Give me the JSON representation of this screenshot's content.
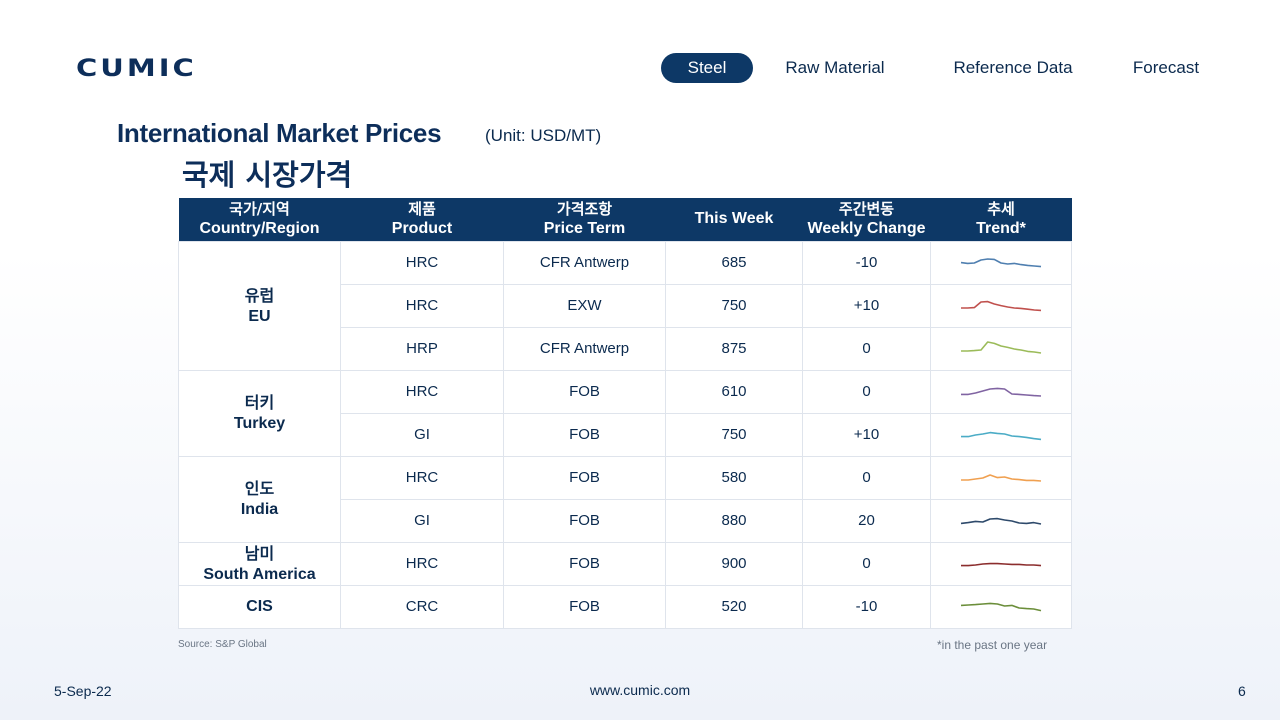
{
  "brand": {
    "logo_text": "CUMIC"
  },
  "nav": {
    "items": [
      {
        "label": "Steel",
        "active": true
      },
      {
        "label": "Raw Material",
        "active": false
      },
      {
        "label": "Reference Data",
        "active": false
      },
      {
        "label": "Forecast",
        "active": false
      }
    ]
  },
  "title": {
    "en": "International Market Prices",
    "unit": "(Unit: USD/MT)",
    "ko": "국제 시장가격"
  },
  "table": {
    "headers": [
      {
        "ko": "국가/지역",
        "en": "Country/Region"
      },
      {
        "ko": "제품",
        "en": "Product"
      },
      {
        "ko": "가격조항",
        "en": "Price Term"
      },
      {
        "ko": "",
        "en": "This Week"
      },
      {
        "ko": "주간변동",
        "en": "Weekly Change"
      },
      {
        "ko": "추세",
        "en": "Trend*"
      }
    ],
    "regions": [
      {
        "ko": "유럽",
        "en": "EU",
        "rows": [
          {
            "product": "HRC",
            "term": "CFR Antwerp",
            "price": "685",
            "change": "-10",
            "trend_color": "#4f7fb0",
            "trend": [
              0.48,
              0.52,
              0.5,
              0.35,
              0.3,
              0.32,
              0.5,
              0.55,
              0.52,
              0.58,
              0.62,
              0.65,
              0.68
            ]
          },
          {
            "product": "HRC",
            "term": "EXW",
            "price": "750",
            "change": "+10",
            "trend_color": "#c0504d",
            "trend": [
              0.6,
              0.6,
              0.58,
              0.3,
              0.28,
              0.4,
              0.48,
              0.55,
              0.6,
              0.62,
              0.66,
              0.7,
              0.72
            ]
          },
          {
            "product": "HRP",
            "term": "CFR Antwerp",
            "price": "875",
            "change": "0",
            "trend_color": "#9bbb59",
            "trend": [
              0.6,
              0.6,
              0.58,
              0.55,
              0.15,
              0.22,
              0.35,
              0.42,
              0.5,
              0.55,
              0.62,
              0.65,
              0.7
            ]
          }
        ]
      },
      {
        "ko": "터키",
        "en": "Turkey",
        "rows": [
          {
            "product": "HRC",
            "term": "FOB",
            "price": "610",
            "change": "0",
            "trend_color": "#8064a2",
            "trend": [
              0.62,
              0.62,
              0.55,
              0.45,
              0.35,
              0.32,
              0.35,
              0.6,
              0.62,
              0.65,
              0.68,
              0.7
            ]
          },
          {
            "product": "GI",
            "term": "FOB",
            "price": "750",
            "change": "+10",
            "trend_color": "#4bacc6",
            "trend": [
              0.58,
              0.58,
              0.5,
              0.45,
              0.38,
              0.42,
              0.45,
              0.55,
              0.58,
              0.62,
              0.68,
              0.72
            ]
          }
        ]
      },
      {
        "ko": "인도",
        "en": "India",
        "rows": [
          {
            "product": "HRC",
            "term": "FOB",
            "price": "580",
            "change": "0",
            "trend_color": "#f0a050",
            "trend": [
              0.6,
              0.6,
              0.55,
              0.5,
              0.35,
              0.48,
              0.45,
              0.55,
              0.58,
              0.62,
              0.62,
              0.65
            ]
          },
          {
            "product": "GI",
            "term": "FOB",
            "price": "880",
            "change": "20",
            "trend_color": "#2e4a6b",
            "trend": [
              0.62,
              0.58,
              0.52,
              0.55,
              0.4,
              0.38,
              0.45,
              0.5,
              0.6,
              0.62,
              0.58,
              0.65
            ]
          }
        ]
      },
      {
        "ko": "남미",
        "en": "South America",
        "rows": [
          {
            "product": "HRC",
            "term": "FOB",
            "price": "900",
            "change": "0",
            "trend_color": "#8b2d2d",
            "trend": [
              0.58,
              0.58,
              0.55,
              0.5,
              0.48,
              0.48,
              0.5,
              0.52,
              0.52,
              0.55,
              0.55,
              0.58
            ]
          }
        ]
      },
      {
        "ko": "",
        "en": "CIS",
        "rows": [
          {
            "product": "CRC",
            "term": "FOB",
            "price": "520",
            "change": "-10",
            "trend_color": "#6b8e3a",
            "trend": [
              0.42,
              0.4,
              0.38,
              0.35,
              0.32,
              0.35,
              0.45,
              0.42,
              0.55,
              0.58,
              0.6,
              0.68
            ]
          }
        ]
      }
    ]
  },
  "footer": {
    "source": "Source: S&P Global",
    "trend_note": "*in the past one year",
    "date": "5-Sep-22",
    "url": "www.cumic.com",
    "page": "6"
  },
  "colors": {
    "navy": "#0d3866",
    "negative": "#9c1c1c",
    "positive": "#1f9a45"
  }
}
